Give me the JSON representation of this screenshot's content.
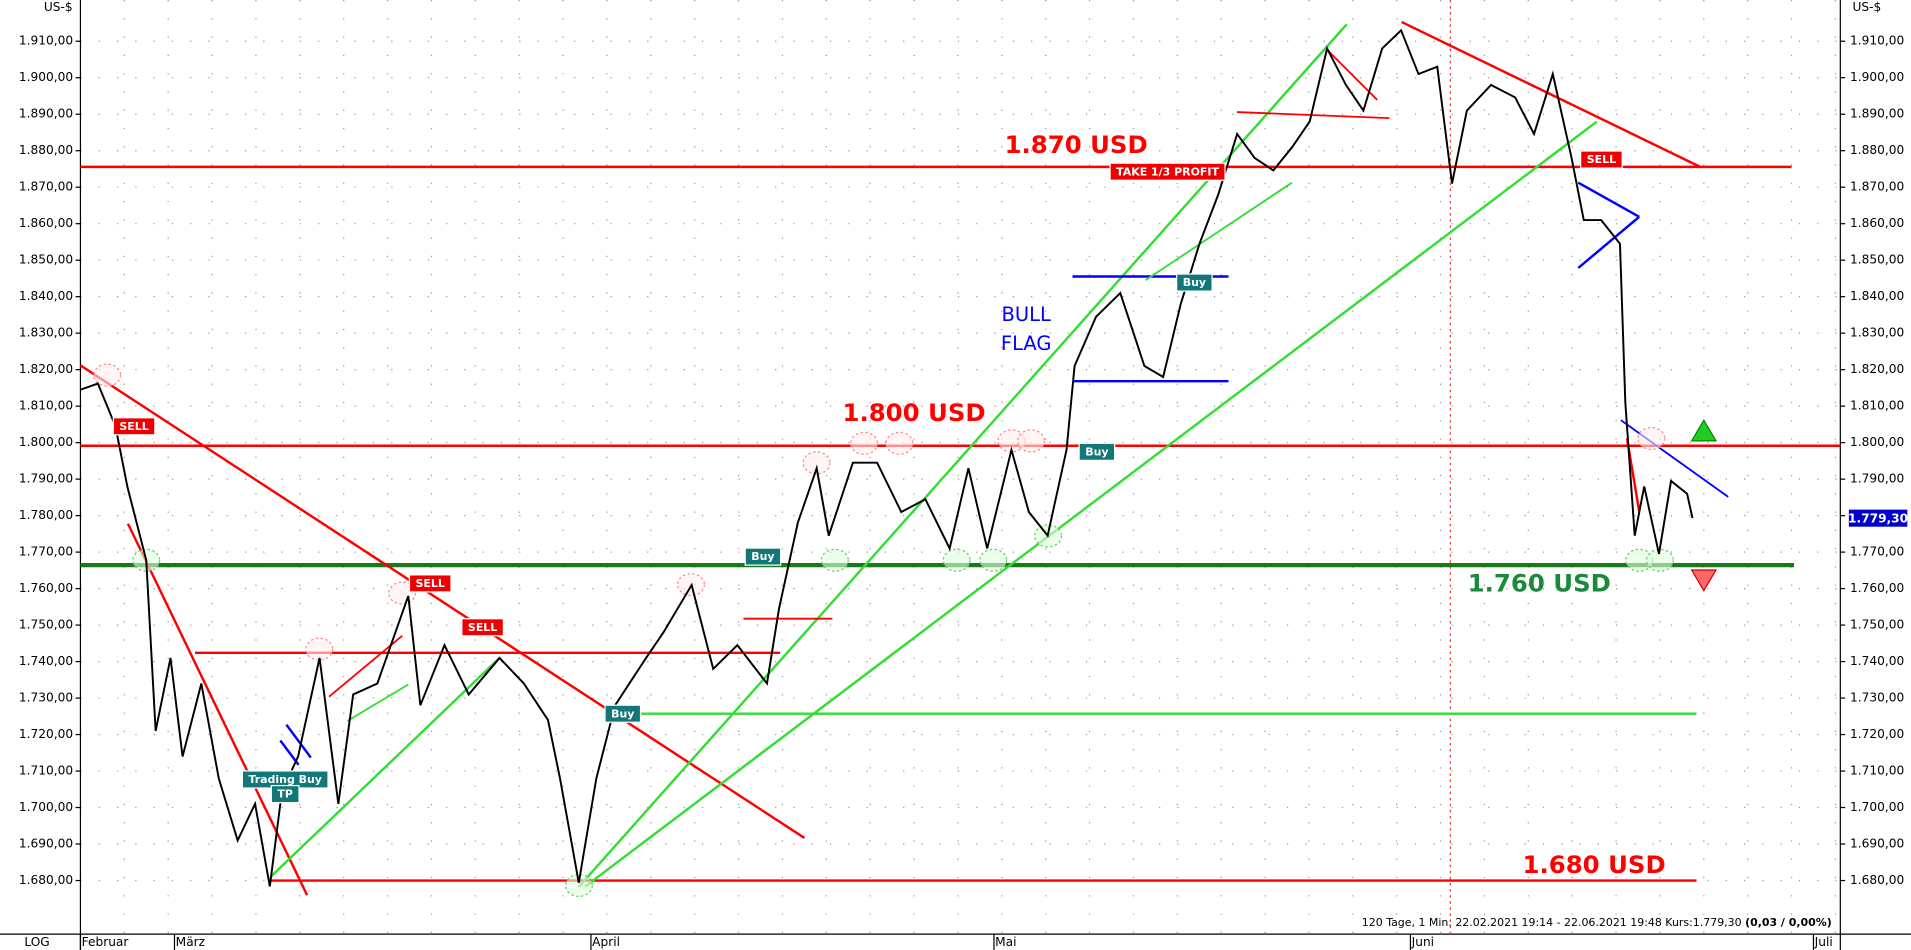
{
  "chart_data": {
    "type": "line",
    "y_label": "US-$",
    "scale_label": "LOG",
    "color": "#000000",
    "grid": true,
    "x": [
      0,
      1.3,
      2.6,
      3.5,
      4.9,
      5.6,
      6.7,
      7.6,
      9,
      10.3,
      11.7,
      13,
      14.1,
      15,
      16.2,
      17.8,
      19.2,
      20.3,
      22.1,
      24.4,
      25.3,
      27.1,
      28.9,
      31.2,
      33,
      34.8,
      35.7,
      37.1,
      38.4,
      39.8,
      42.1,
      43.4,
      45.5,
      47.1,
      48.9,
      51.1,
      52,
      53.4,
      54.8,
      55.7,
      57.5,
      59.3,
      61.1,
      62.9,
      64.7,
      66.1,
      67.5,
      69.3,
      70.6,
      72,
      73.4,
      74,
      75.6,
      77.4,
      79.2,
      80.6,
      81.9,
      83.3,
      84.7,
      86.1,
      87.4,
      88.8,
      90.2,
      91.5,
      92.8,
      94.2,
      95.5,
      96.9,
      98.3,
      99.6,
      101,
      102.1,
      103.2,
      105,
      106.8,
      108.2,
      109.6,
      111,
      111.9,
      113.2,
      114.6,
      115,
      115.7,
      116.4,
      117.5,
      118.4,
      119.6,
      120
    ],
    "values": [
      1814.5,
      1816.2,
      1804.5,
      1787.8,
      1767.8,
      1721,
      1741,
      1714,
      1734,
      1708,
      1691,
      1701,
      1678.4,
      1704.4,
      1714,
      1741,
      1701,
      1731,
      1734,
      1758,
      1728,
      1744.5,
      1731,
      1741,
      1734,
      1724,
      1708,
      1679.4,
      1708,
      1728,
      1741,
      1748,
      1761,
      1738,
      1744.5,
      1734,
      1754.5,
      1778,
      1793,
      1774.5,
      1794.5,
      1794.5,
      1781,
      1784.5,
      1771,
      1793,
      1771,
      1798,
      1781,
      1774.5,
      1798,
      1821,
      1834.5,
      1841,
      1821,
      1818,
      1838,
      1854.5,
      1868,
      1884.6,
      1878,
      1874.6,
      1881,
      1888,
      1908,
      1898,
      1891,
      1908,
      1913,
      1901,
      1903,
      1871,
      1891,
      1898,
      1894.6,
      1884.6,
      1901,
      1878,
      1861,
      1861,
      1854.5,
      1811,
      1774.5,
      1788,
      1769.5,
      1789.5,
      1786,
      1779.3
    ],
    "xlim": [
      0,
      131
    ],
    "xticks": [
      {
        "value": 0,
        "label": "Februar"
      },
      {
        "value": 7,
        "label": "März"
      },
      {
        "value": 38,
        "label": "April"
      },
      {
        "value": 68,
        "label": "Mai"
      },
      {
        "value": 99,
        "label": "Juni"
      },
      {
        "value": 129,
        "label": "Juli"
      }
    ],
    "ylim": [
      1665.3,
      1921.3
    ],
    "yticks": [
      {
        "value": 1680,
        "label": "1.680,00"
      },
      {
        "value": 1690,
        "label": "1.690,00"
      },
      {
        "value": 1700,
        "label": "1.700,00"
      },
      {
        "value": 1710,
        "label": "1.710,00"
      },
      {
        "value": 1720,
        "label": "1.720,00"
      },
      {
        "value": 1730,
        "label": "1.730,00"
      },
      {
        "value": 1740,
        "label": "1.740,00"
      },
      {
        "value": 1750,
        "label": "1.750,00"
      },
      {
        "value": 1760,
        "label": "1.760,00"
      },
      {
        "value": 1770,
        "label": "1.770,00"
      },
      {
        "value": 1780,
        "label": "1.780,00"
      },
      {
        "value": 1790,
        "label": "1.790,00"
      },
      {
        "value": 1800,
        "label": "1.800,00"
      },
      {
        "value": 1810,
        "label": "1.810,00"
      },
      {
        "value": 1820,
        "label": "1.820,00"
      },
      {
        "value": 1830,
        "label": "1.830,00"
      },
      {
        "value": 1840,
        "label": "1.840,00"
      },
      {
        "value": 1850,
        "label": "1.850,00"
      },
      {
        "value": 1860,
        "label": "1.860,00"
      },
      {
        "value": 1870,
        "label": "1.870,00"
      },
      {
        "value": 1880,
        "label": "1.880,00"
      },
      {
        "value": 1890,
        "label": "1.890,00"
      },
      {
        "value": 1900,
        "label": "1.900,00"
      },
      {
        "value": 1910,
        "label": "1.910,00"
      }
    ],
    "last_price": {
      "value": 1779.3,
      "label": "1.779,30"
    },
    "levels": [
      "1.870 USD",
      "1.800 USD",
      "1.760 USD",
      "1.680 USD"
    ],
    "pattern_label": [
      "BULL",
      "FLAG"
    ],
    "signals": [
      "SELL",
      "SELL",
      "SELL",
      "SELL",
      "Buy",
      "Buy",
      "Buy",
      "Buy",
      "TAKE 1/3 PROFIT",
      "Trading Buy",
      "TP"
    ],
    "info": "120 Tage, 1 Min. 22.02.2021 19:14 - 22.06.2021 19:48  Kurs:1.779,30",
    "change": "(0,03 / 0,00%)"
  }
}
